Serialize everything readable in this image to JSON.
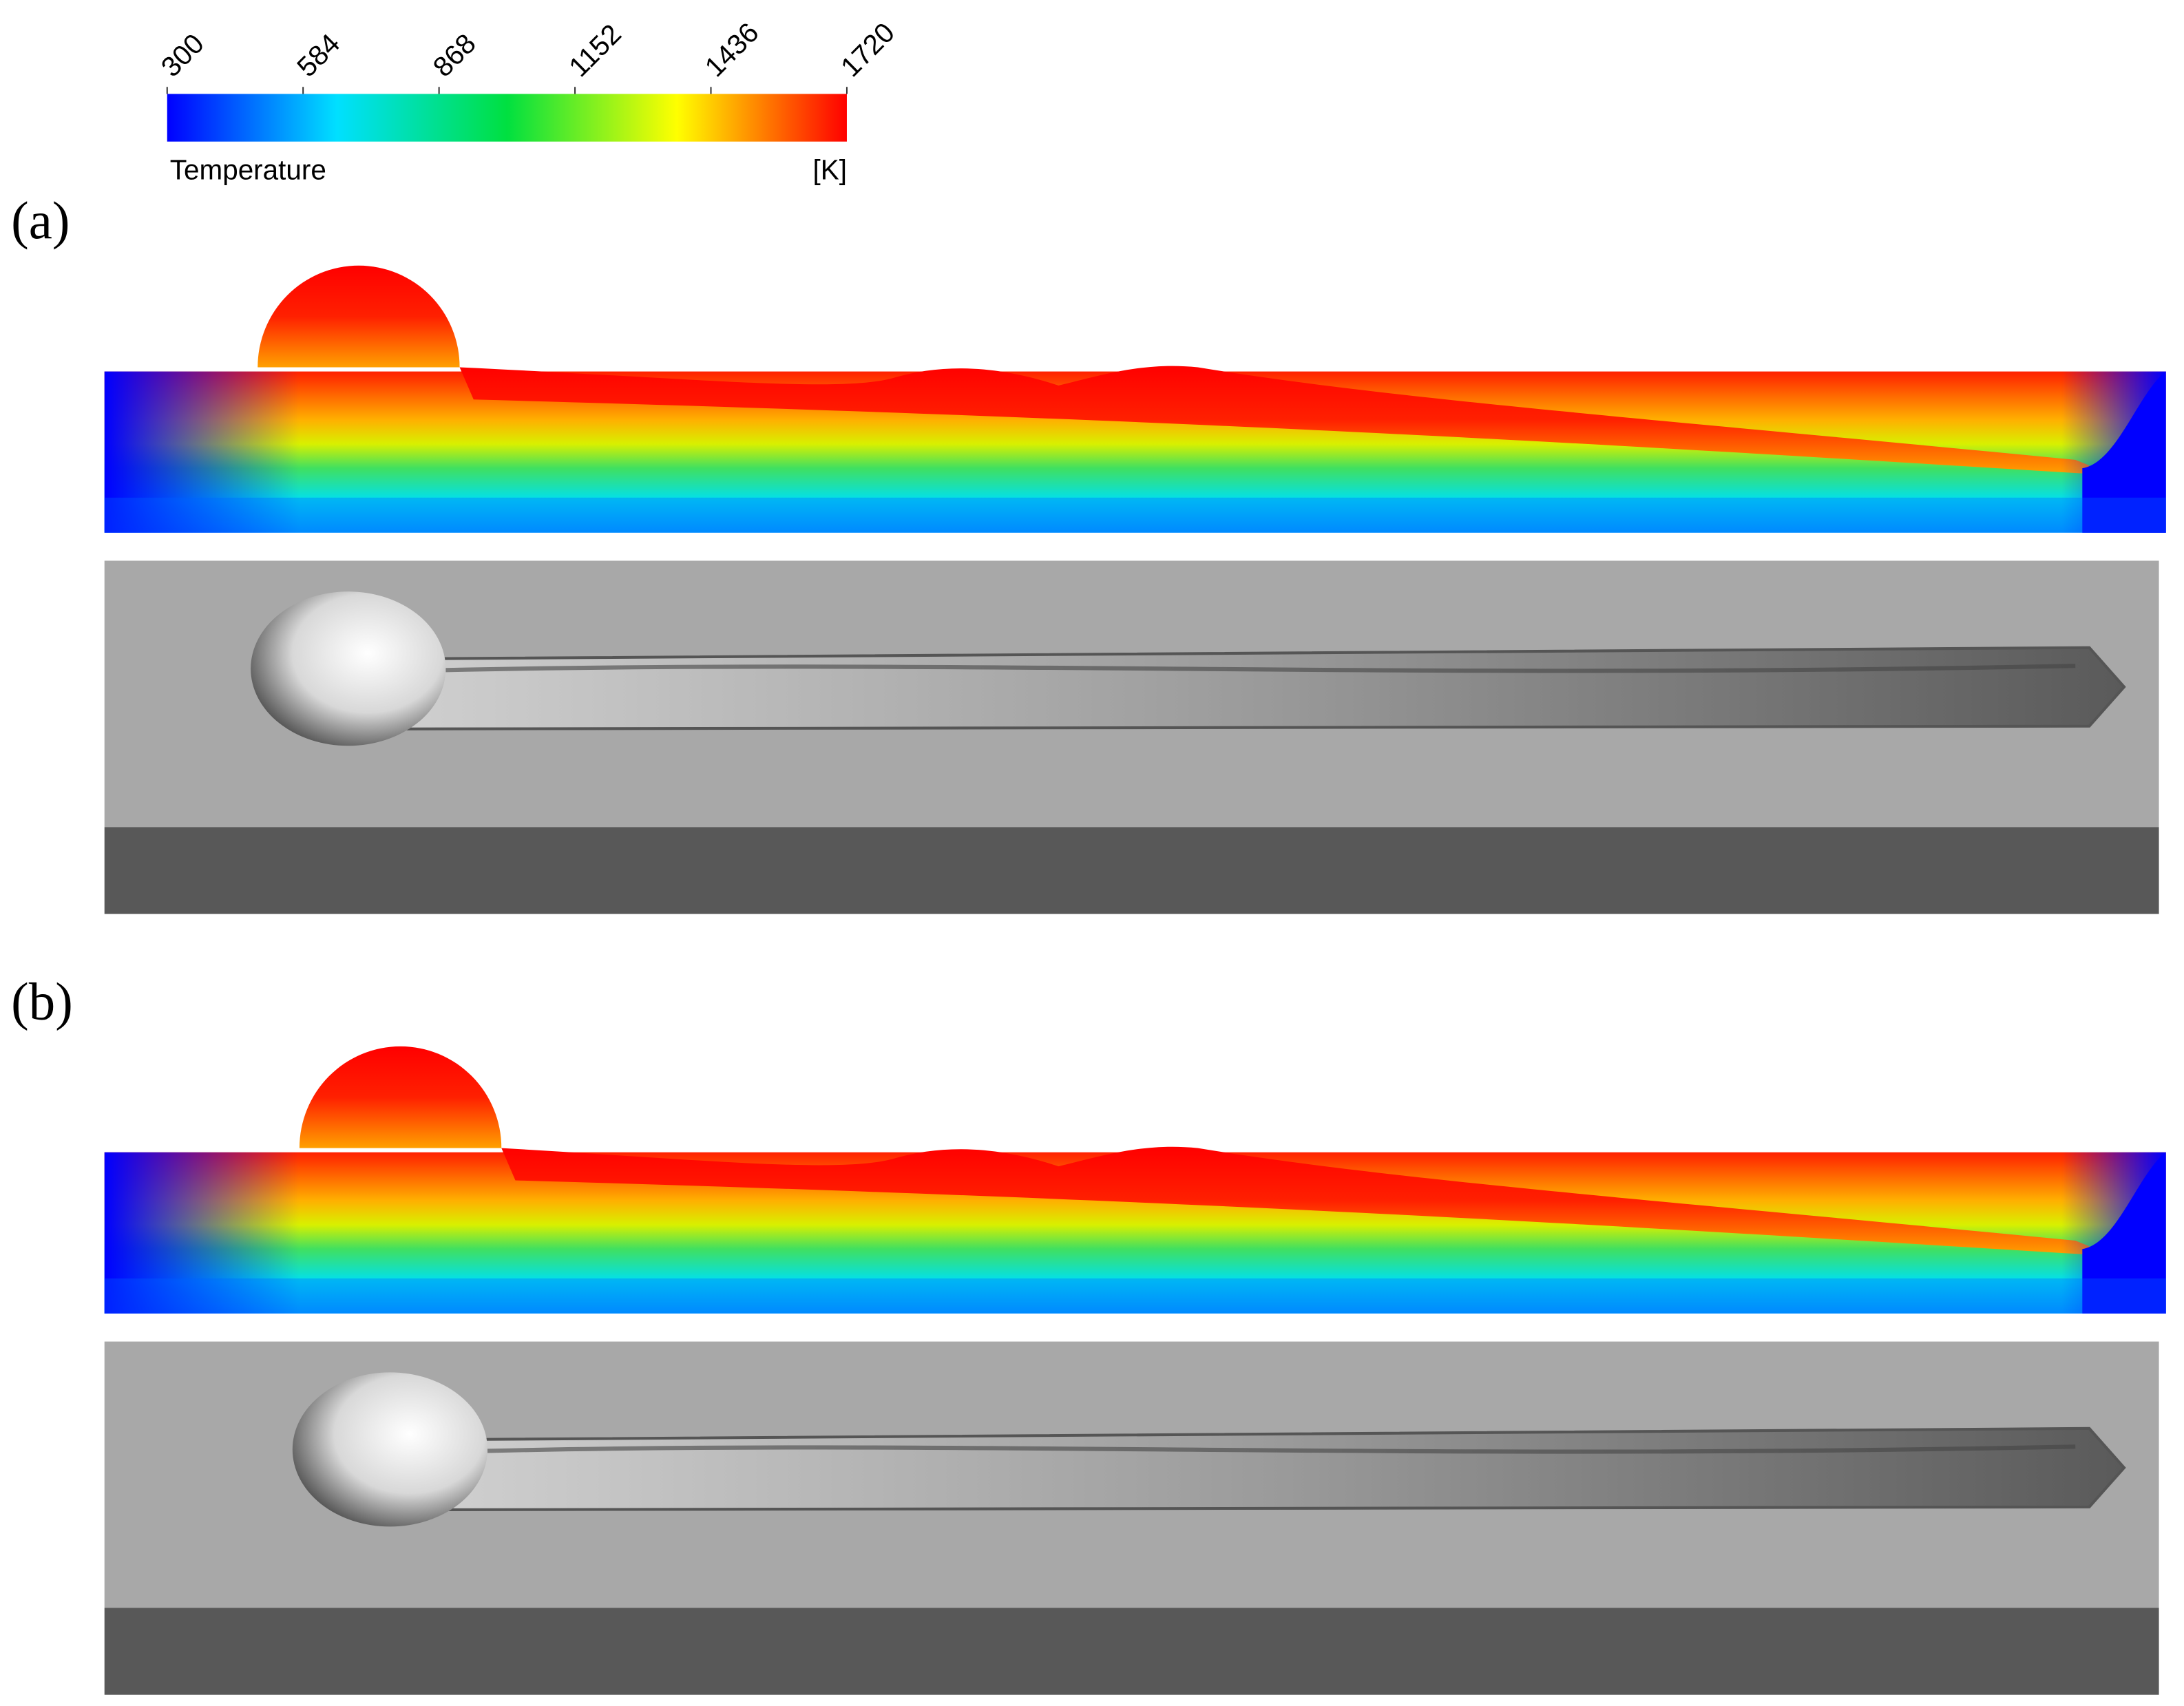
{
  "colorbar": {
    "ticks": [
      300,
      584,
      868,
      1152,
      1436,
      1720
    ],
    "label": "Temperature",
    "unit": "[K]"
  },
  "panels": [
    {
      "label": "(a)"
    },
    {
      "label": "(b)"
    }
  ]
}
